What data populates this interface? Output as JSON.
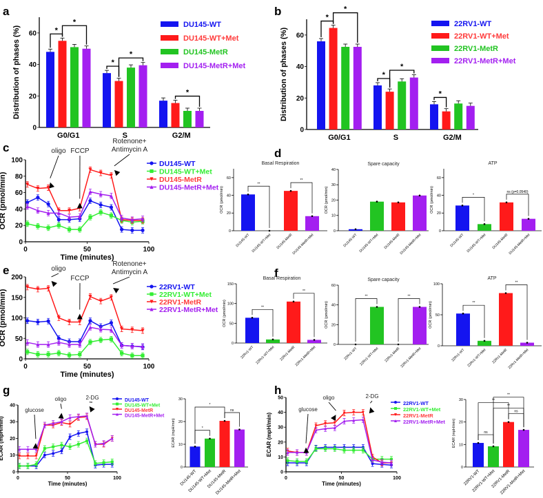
{
  "panels": [
    "a",
    "b",
    "c",
    "d",
    "e",
    "f",
    "g",
    "h"
  ],
  "colors": {
    "blue": "#1414f0",
    "red": "#ff1a1a",
    "green": "#22c422",
    "line_green": "#33ee33",
    "purple": "#a31ff0",
    "legend_red": "#ff3a3a"
  },
  "chart_data": [
    {
      "panel": "a",
      "type": "bar",
      "ylabel": "Distribution of phases (%)",
      "ylim": [
        0,
        70
      ],
      "yticks": [
        0,
        20,
        40,
        60
      ],
      "categories": [
        "G0/G1",
        "S",
        "G2/M"
      ],
      "series": [
        {
          "name": "DU145-WT",
          "color": "blue",
          "values": [
            48,
            34.5,
            17
          ]
        },
        {
          "name": "DU145-WT+Met",
          "color": "red",
          "values": [
            55,
            29.5,
            15.5
          ]
        },
        {
          "name": "DU145-MetR",
          "color": "green",
          "values": [
            51,
            38,
            10.5
          ]
        },
        {
          "name": "DU145-MetR+Met",
          "color": "purple",
          "values": [
            50,
            39.5,
            10.5
          ]
        }
      ],
      "significance": [
        {
          "from": [
            0,
            0
          ],
          "to": [
            0,
            1
          ],
          "label": "*"
        },
        {
          "from": [
            0,
            1
          ],
          "to": [
            0,
            3
          ],
          "label": "*"
        },
        {
          "from": [
            1,
            0
          ],
          "to": [
            1,
            1
          ],
          "label": "*"
        },
        {
          "from": [
            1,
            1
          ],
          "to": [
            1,
            3
          ],
          "label": "*"
        },
        {
          "from": [
            2,
            1
          ],
          "to": [
            2,
            3
          ],
          "label": "*"
        }
      ],
      "legend": "right"
    },
    {
      "panel": "b",
      "type": "bar",
      "ylabel": "Distribution of phases (%)",
      "ylim": [
        0,
        70
      ],
      "yticks": [
        0,
        20,
        40,
        60
      ],
      "categories": [
        "G0/G1",
        "S",
        "G2/M"
      ],
      "series": [
        {
          "name": "22RV1-WT",
          "color": "blue",
          "values": [
            56,
            28,
            16
          ]
        },
        {
          "name": "22RV1-WT+Met",
          "color": "red",
          "values": [
            64.5,
            24,
            11.5
          ]
        },
        {
          "name": "22RV1-MetR",
          "color": "green",
          "values": [
            52.5,
            30.5,
            16.5
          ]
        },
        {
          "name": "22RV1-MetR+Met",
          "color": "purple",
          "values": [
            52.5,
            33,
            15
          ]
        }
      ],
      "significance": [
        {
          "from": [
            0,
            0
          ],
          "to": [
            0,
            1
          ],
          "label": "*"
        },
        {
          "from": [
            0,
            1
          ],
          "to": [
            0,
            3
          ],
          "label": "*"
        },
        {
          "from": [
            1,
            0
          ],
          "to": [
            1,
            1
          ],
          "label": "*"
        },
        {
          "from": [
            1,
            1
          ],
          "to": [
            1,
            3
          ],
          "label": "*"
        },
        {
          "from": [
            2,
            0
          ],
          "to": [
            2,
            1
          ],
          "label": "*"
        }
      ],
      "legend": "right"
    },
    {
      "panel": "c",
      "type": "line",
      "ylabel": "OCR (pmol/min)",
      "xlabel": "Time (minutes)",
      "xlim": [
        0,
        100
      ],
      "xticks": [
        0,
        50,
        100
      ],
      "ylim": [
        0,
        100
      ],
      "yticks": [
        0,
        20,
        40,
        60,
        80,
        100
      ],
      "x": [
        1.5,
        10,
        18.5,
        27,
        35.5,
        44,
        52.5,
        61,
        69.5,
        78,
        86.5,
        95
      ],
      "series": [
        {
          "name": "DU145-WT",
          "color": "blue",
          "marker": "circle",
          "values": [
            48,
            54,
            46,
            27,
            27,
            28,
            50,
            45,
            42,
            15,
            14,
            14
          ]
        },
        {
          "name": "DU145-WT+Met",
          "color": "line_green",
          "marker": "square",
          "values": [
            22,
            19,
            17,
            20,
            15,
            15,
            30,
            36,
            32,
            26,
            24,
            25
          ]
        },
        {
          "name": "DU145-MetR",
          "color": "red",
          "marker": "triangle-down",
          "values": [
            70,
            65,
            66,
            38,
            38,
            41,
            88,
            84,
            81,
            27,
            26,
            26
          ]
        },
        {
          "name": "DU145-MetR+Met",
          "color": "purple",
          "marker": "triangle-up",
          "values": [
            43,
            38,
            35,
            35,
            30,
            31,
            61,
            58,
            56,
            29,
            27,
            28
          ]
        }
      ],
      "annotations": [
        {
          "lines": [
            "oligo"
          ],
          "x": 20,
          "y": 70
        },
        {
          "lines": [
            "FCCP"
          ],
          "x": 44,
          "y": 45
        },
        {
          "lines": [
            "Rotenone+",
            "Antimycin A"
          ],
          "x": 72,
          "y": 85
        }
      ],
      "legend": "right"
    },
    {
      "panel": "d",
      "type": "bar",
      "title": "Basal Respiration",
      "ylabel": "OCR (pmol/min)",
      "ylim": [
        0,
        70
      ],
      "yticks": [
        0,
        20,
        40,
        60
      ],
      "categories": [
        "DU145-WT",
        "DU145-WT+Met",
        "DU145-MetR",
        "DU145-MetR+Met"
      ],
      "colors": [
        "blue",
        "green",
        "red",
        "purple"
      ],
      "values": [
        41,
        0,
        45,
        16.5
      ],
      "significance": [
        {
          "from": 0,
          "to": 1,
          "label": "**"
        },
        {
          "from": 2,
          "to": 3,
          "label": "**"
        }
      ]
    },
    {
      "panel": "d",
      "type": "bar",
      "title": "Spare capacity",
      "ylabel": "OCR (pmol/min)",
      "ylim": [
        0,
        40
      ],
      "yticks": [
        0,
        10,
        20,
        30,
        40
      ],
      "categories": [
        "DU145-WT",
        "DU145-WT+Met",
        "DU145-MetR",
        "DU145-MetR+Met"
      ],
      "colors": [
        "blue",
        "green",
        "red",
        "purple"
      ],
      "values": [
        1,
        19,
        18.5,
        23
      ],
      "significance": []
    },
    {
      "panel": "d",
      "type": "bar",
      "title": "ATP",
      "ylabel": "OCR (pmol/min)",
      "ylim": [
        0,
        70
      ],
      "yticks": [
        0,
        20,
        40,
        60
      ],
      "categories": [
        "DU145-WT",
        "DU145-WT+Met",
        "DU145-MetR",
        "DU145-MetR+Met"
      ],
      "colors": [
        "blue",
        "green",
        "red",
        "purple"
      ],
      "values": [
        28.5,
        7.5,
        32,
        13.5
      ],
      "significance": [
        {
          "from": 0,
          "to": 1,
          "label": "*"
        },
        {
          "from": 2,
          "to": 3,
          "label": "ns (p=0.0540)"
        }
      ]
    },
    {
      "panel": "e",
      "type": "line",
      "ylabel": "OCR (pmol/min)",
      "xlabel": "Time (minutes)",
      "xlim": [
        0,
        100
      ],
      "xticks": [
        0,
        50,
        100
      ],
      "ylim": [
        0,
        200
      ],
      "yticks": [
        0,
        50,
        100,
        150,
        200
      ],
      "x": [
        1.5,
        10,
        18.5,
        27,
        35.5,
        44,
        52.5,
        61,
        69.5,
        78,
        86.5,
        95
      ],
      "series": [
        {
          "name": "22RV1-WT",
          "color": "blue",
          "marker": "circle",
          "values": [
            93,
            90,
            92,
            50,
            42,
            42,
            93,
            79,
            88,
            33,
            31,
            29
          ]
        },
        {
          "name": "22RV1-WT+Met",
          "color": "line_green",
          "marker": "square",
          "values": [
            17,
            11,
            11,
            14,
            9,
            11,
            41,
            46,
            48,
            14,
            8,
            8
          ]
        },
        {
          "name": "22RV1-MetR",
          "color": "red",
          "marker": "triangle-down",
          "values": [
            175,
            170,
            172,
            100,
            90,
            90,
            152,
            141,
            150,
            73,
            71,
            69
          ]
        },
        {
          "name": "22RV1-MetR+Met",
          "color": "purple",
          "marker": "triangle-up",
          "values": [
            40,
            35,
            35,
            40,
            35,
            35,
            77,
            72,
            71,
            33,
            31,
            30
          ]
        }
      ],
      "annotations": [
        {
          "lines": [
            "oligo"
          ],
          "x": 21,
          "y": 185
        },
        {
          "lines": [
            "FCCP"
          ],
          "x": 44,
          "y": 105
        },
        {
          "lines": [
            "Rotenone+",
            "Antimycin A"
          ],
          "x": 71,
          "y": 168
        }
      ],
      "legend": "right"
    },
    {
      "panel": "f",
      "type": "bar",
      "title": "Basal Respiration",
      "ylabel": "OCR (pmol/min)",
      "ylim": [
        0,
        150
      ],
      "yticks": [
        0,
        50,
        100,
        150
      ],
      "categories": [
        "22Rv1-WT",
        "22Rv1-WT+Met",
        "22Rv1-MetR",
        "22Rv1-MetR+Met"
      ],
      "colors": [
        "blue",
        "green",
        "red",
        "purple"
      ],
      "values": [
        64,
        9,
        105,
        8
      ],
      "significance": [
        {
          "from": 0,
          "to": 1,
          "label": "**"
        },
        {
          "from": 2,
          "to": 3,
          "label": "**"
        }
      ]
    },
    {
      "panel": "f",
      "type": "bar",
      "title": "Spare capacity",
      "ylabel": "OCR (pmol/min)",
      "ylim": [
        0,
        60
      ],
      "yticks": [
        0,
        20,
        40,
        60
      ],
      "categories": [
        "22Rv1-WT",
        "22Rv1-WT+Met",
        "22Rv1-MetR",
        "22Rv1-MetR+Met"
      ],
      "colors": [
        "blue",
        "green",
        "red",
        "purple"
      ],
      "values": [
        0,
        38,
        0,
        38
      ],
      "significance": [
        {
          "from": 0,
          "to": 1,
          "label": "**"
        },
        {
          "from": 2,
          "to": 3,
          "label": "**"
        }
      ]
    },
    {
      "panel": "f",
      "type": "bar",
      "title": "ATP",
      "ylabel": "OCR (pmol/min)",
      "ylim": [
        0,
        100
      ],
      "yticks": [
        0,
        50,
        100
      ],
      "categories": [
        "22Rv1-WT",
        "22Rv1-WT+Met",
        "22Rv1-MetR",
        "22Rv1-MetR+Met"
      ],
      "colors": [
        "blue",
        "green",
        "red",
        "purple"
      ],
      "values": [
        52,
        8,
        85,
        5
      ],
      "significance": [
        {
          "from": 0,
          "to": 1,
          "label": "**"
        },
        {
          "from": 2,
          "to": 3,
          "label": "**"
        }
      ]
    },
    {
      "panel": "g",
      "type": "line",
      "ylabel": "ECAR (mpH/min)",
      "xlabel": "Time (minutes)",
      "xlim": [
        0,
        100
      ],
      "xticks": [
        0,
        50,
        100
      ],
      "ylim": [
        0,
        40
      ],
      "yticks": [
        0,
        10,
        20,
        30,
        40
      ],
      "x": [
        1.5,
        10,
        18.5,
        27,
        35.5,
        44,
        52.5,
        61,
        69.5,
        78,
        86.5,
        95
      ],
      "series": [
        {
          "name": "DU145-WT",
          "color": "blue",
          "marker": "circle",
          "values": [
            3.5,
            3.5,
            3.5,
            10,
            11,
            12.5,
            21,
            23,
            24,
            4,
            4.5,
            4.5
          ]
        },
        {
          "name": "DU145-WT+Met",
          "color": "line_green",
          "marker": "square",
          "values": [
            3.5,
            3.5,
            4.5,
            14,
            15,
            16,
            15,
            16.5,
            18.5,
            5,
            5.5,
            6
          ]
        },
        {
          "name": "DU145-MetR",
          "color": "red",
          "marker": "triangle-down",
          "values": [
            9.5,
            9.5,
            9.5,
            28,
            28,
            29.5,
            28.5,
            32.5,
            33,
            16.5,
            16.5,
            20
          ]
        },
        {
          "name": "DU145-MetR+Met",
          "color": "purple",
          "marker": "triangle-up",
          "values": [
            13.5,
            13.5,
            13.5,
            28,
            29,
            30,
            32.5,
            33,
            33.5,
            16.5,
            17,
            20
          ]
        }
      ],
      "annotations": [
        {
          "lines": [
            "glucose"
          ],
          "x": 18,
          "y": 16
        },
        {
          "lines": [
            "oligo"
          ],
          "x": 44,
          "y": 34
        },
        {
          "lines": [
            "2-DG"
          ],
          "x": 72,
          "y": 38
        }
      ],
      "legend": "right"
    },
    {
      "panel": "g",
      "type": "bar",
      "ylabel": "ECAR (mpH/min)",
      "ylim": [
        0,
        30
      ],
      "yticks": [
        0,
        10,
        20,
        30
      ],
      "categories": [
        "DU145-WT",
        "DU145-WT+Met",
        "DU145-MetR",
        "DU145-MetR+Met"
      ],
      "colors": [
        "blue",
        "green",
        "red",
        "purple"
      ],
      "values": [
        9,
        12.5,
        20.3,
        16.5
      ],
      "significance": [
        {
          "from": 0,
          "to": 1,
          "label": "*"
        },
        {
          "from": 2,
          "to": 3,
          "label": "ns"
        },
        {
          "from": 0,
          "to": 2,
          "label": "*"
        }
      ]
    },
    {
      "panel": "h",
      "type": "line",
      "ylabel": "ECAR (mpH/min)",
      "xlabel": "Time (minutes)",
      "xlim": [
        0,
        100
      ],
      "xticks": [
        0,
        50,
        100
      ],
      "ylim": [
        0,
        50
      ],
      "yticks": [
        0,
        10,
        20,
        30,
        40,
        50
      ],
      "x": [
        1.5,
        10,
        18.5,
        27,
        35.5,
        44,
        52.5,
        61,
        69.5,
        78,
        86.5,
        95
      ],
      "series": [
        {
          "name": "22RV1-WT",
          "color": "blue",
          "marker": "circle",
          "values": [
            6,
            6,
            6,
            16,
            16.5,
            16.5,
            16.5,
            16.5,
            16.5,
            5.5,
            5,
            4.5
          ]
        },
        {
          "name": "22RV1-WT+Met",
          "color": "line_green",
          "marker": "square",
          "values": [
            7.5,
            7,
            7,
            15.5,
            15.5,
            15.5,
            14.5,
            14.5,
            14.5,
            8.5,
            8.5,
            8.5
          ]
        },
        {
          "name": "22RV1-MetR",
          "color": "red",
          "marker": "triangle-down",
          "values": [
            14,
            13,
            13,
            31,
            32.5,
            33,
            39.5,
            40,
            40,
            10,
            6,
            6
          ]
        },
        {
          "name": "22RV1-MetR+Met",
          "color": "purple",
          "marker": "triangle-up",
          "values": [
            13,
            13,
            13,
            28,
            29,
            29.5,
            34,
            34.5,
            35,
            8,
            6.5,
            6
          ]
        }
      ],
      "annotations": [
        {
          "lines": [
            "glucose"
          ],
          "x": 18,
          "y": 15
        },
        {
          "lines": [
            "oligo"
          ],
          "x": 45,
          "y": 37
        },
        {
          "lines": [
            "2-DG"
          ],
          "x": 76,
          "y": 42
        }
      ],
      "legend": "right"
    },
    {
      "panel": "h",
      "type": "bar",
      "ylabel": "ECAR (mpH/min)",
      "ylim": [
        0,
        30
      ],
      "yticks": [
        0,
        10,
        20,
        30
      ],
      "categories": [
        "22RV1-WT",
        "22RV1-WT+Met",
        "22RV1-MetR",
        "22RV1-MetR+Met"
      ],
      "colors": [
        "blue",
        "green",
        "red",
        "purple"
      ],
      "values": [
        10.7,
        9.2,
        20,
        16.5
      ],
      "significance": [
        {
          "from": 0,
          "to": 1,
          "label": "ns"
        },
        {
          "from": 2,
          "to": 3,
          "label": "ns"
        },
        {
          "from": 1,
          "to": 3,
          "label": "**"
        },
        {
          "from": 0,
          "to": 2,
          "label": "**"
        },
        {
          "from": 1,
          "to": 3,
          "label": "**"
        }
      ]
    }
  ]
}
